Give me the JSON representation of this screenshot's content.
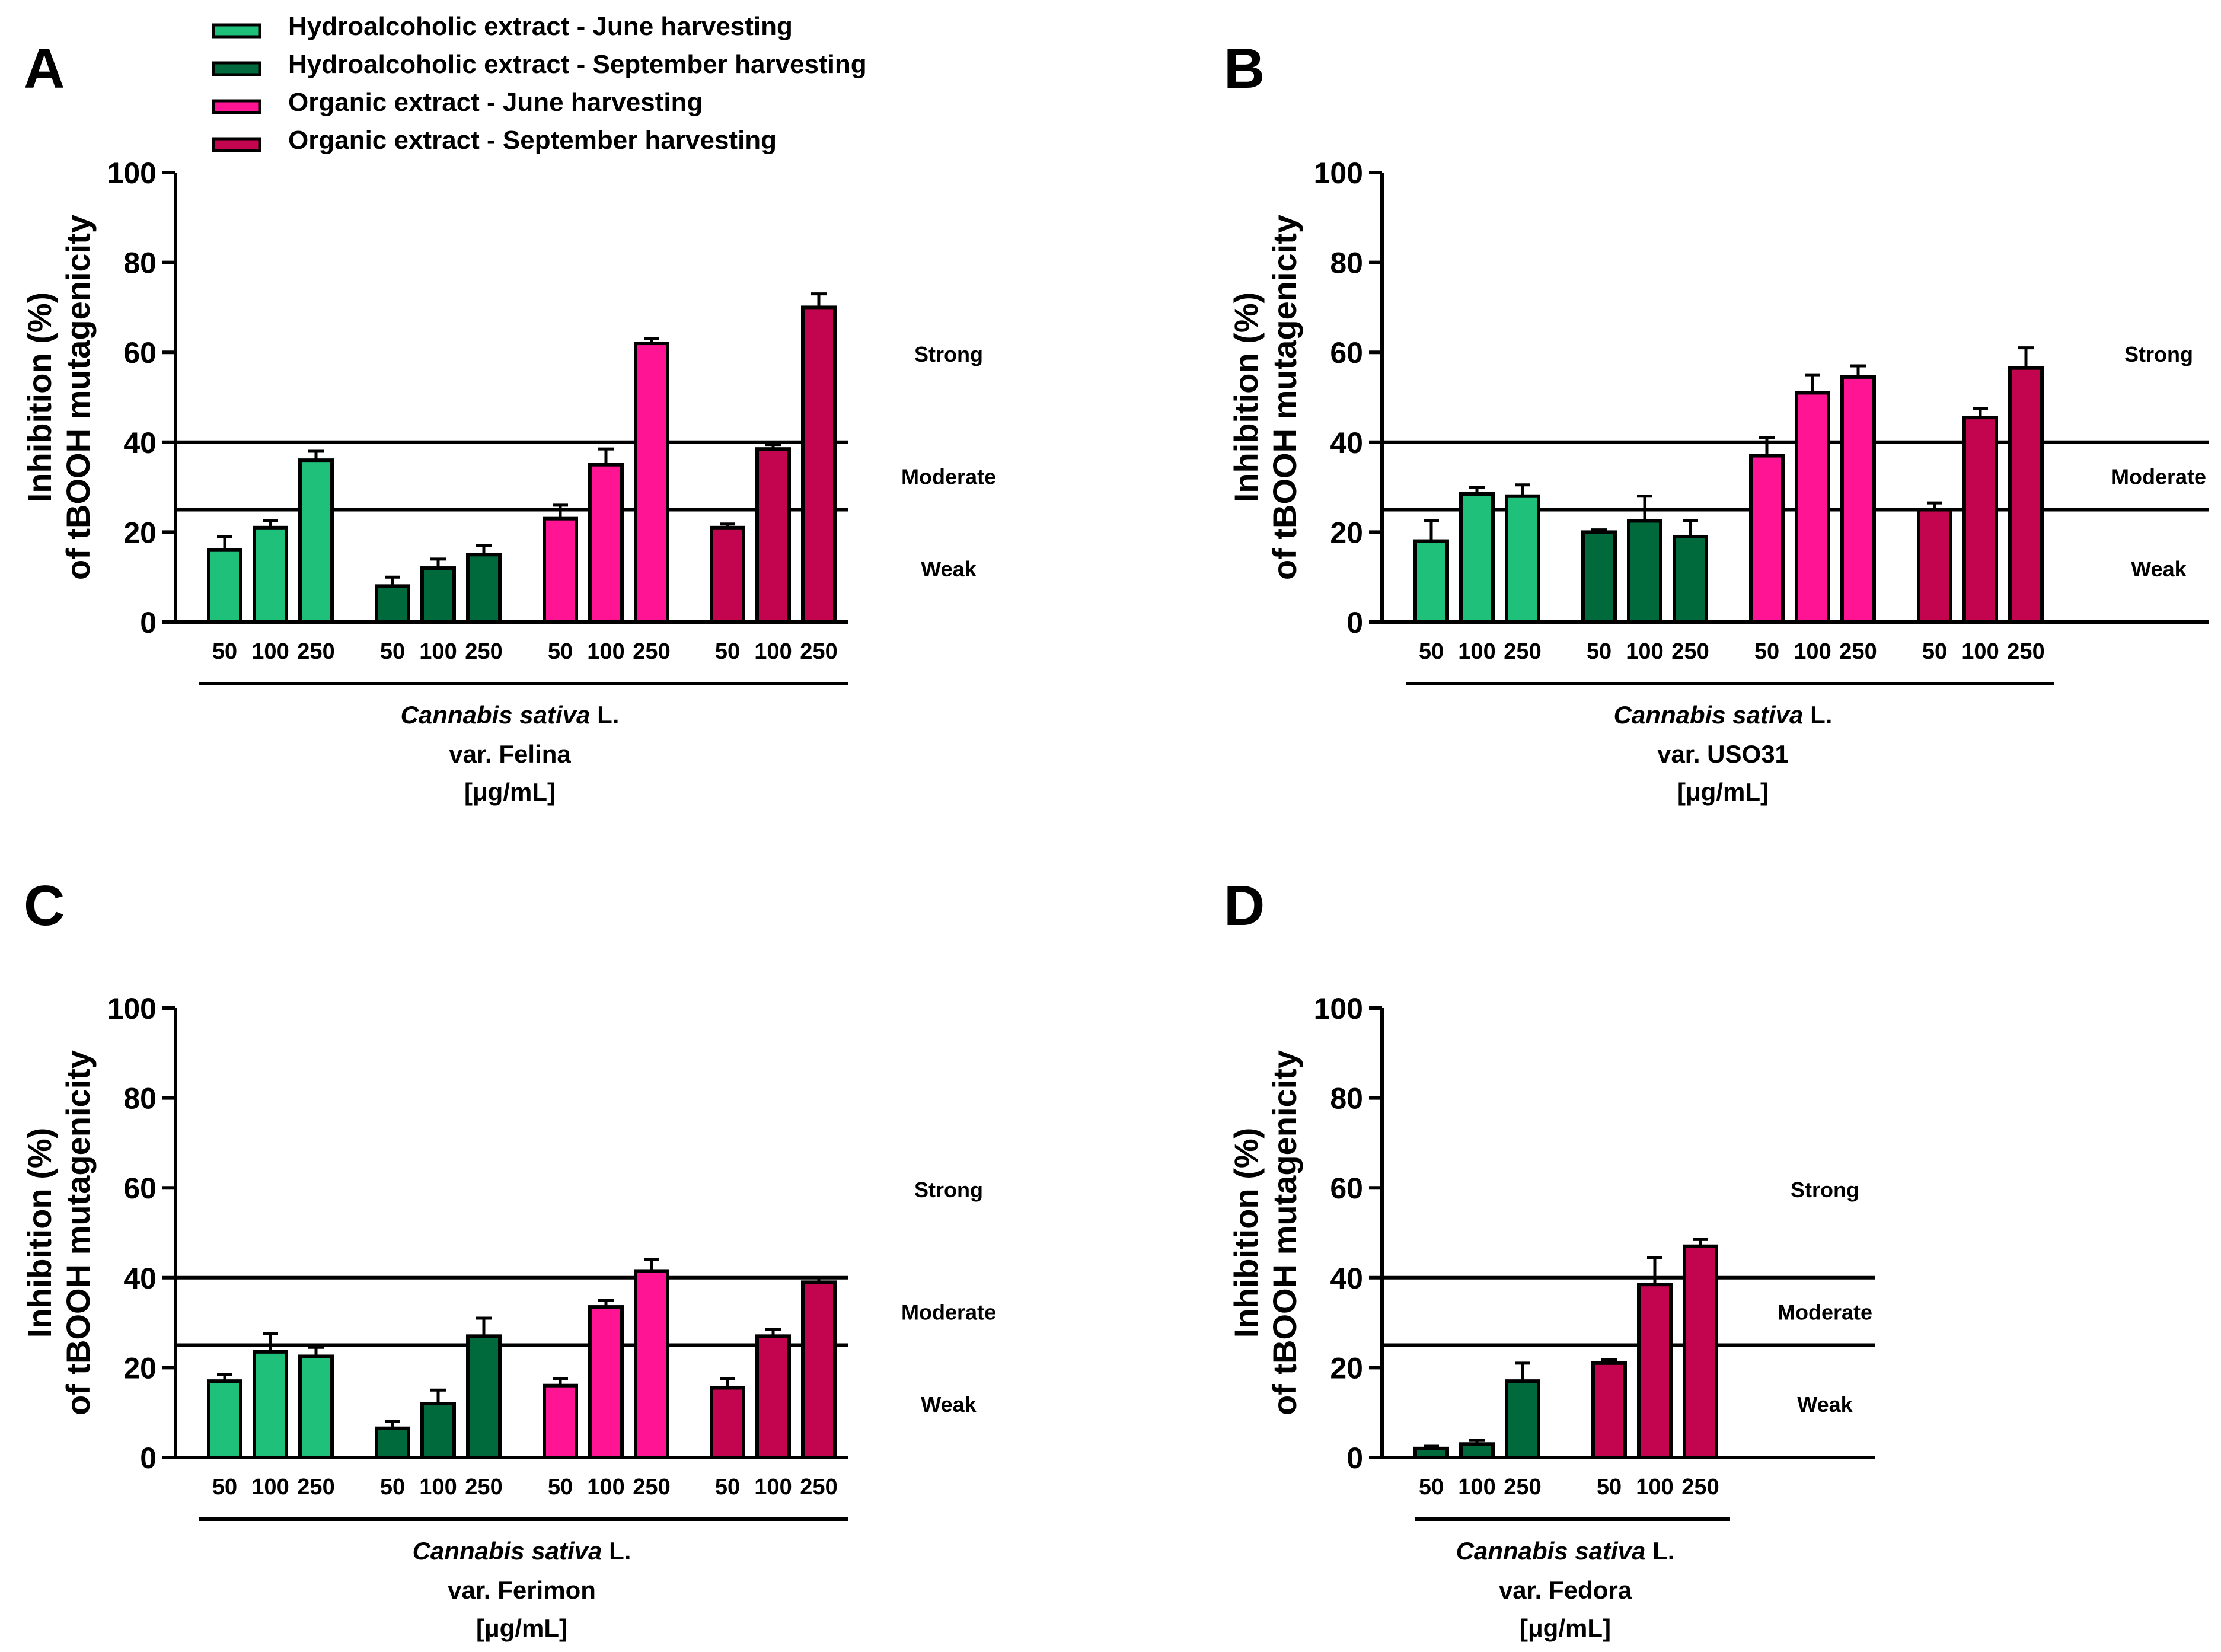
{
  "legend": [
    {
      "label": "Hydroalcoholic extract - June harvesting",
      "color": "#1fc07a"
    },
    {
      "label": "Hydroalcoholic extract - September harvesting",
      "color": "#006a3d"
    },
    {
      "label": "Organic extract - June harvesting",
      "color": "#ff1493"
    },
    {
      "label": "Organic extract - September harvesting",
      "color": "#c2054e"
    }
  ],
  "chart_data": [
    {
      "panel": "A",
      "type": "bar",
      "ylabel_line1": "Inhibition (%)",
      "ylabel_line2": "of tBOOH mutagenicity",
      "ylim": [
        0,
        100
      ],
      "yticks": [
        0,
        20,
        40,
        60,
        80,
        100
      ],
      "thresholds": [
        25,
        40
      ],
      "zones": [
        "Strong",
        "Moderate",
        "Weak"
      ],
      "caption_species": "Cannabis sativa",
      "caption_author": " L.",
      "caption_var": "var. Felina",
      "caption_unit": "[μg/mL]",
      "categories": [
        "50",
        "100",
        "250"
      ],
      "series": [
        {
          "name": "Hydroalcoholic extract - June harvesting",
          "series_index": 0,
          "values": [
            16,
            21,
            36
          ],
          "errors": [
            3,
            1.5,
            2
          ]
        },
        {
          "name": "Hydroalcoholic extract - September harvesting",
          "series_index": 1,
          "values": [
            8,
            12,
            15
          ],
          "errors": [
            2,
            2,
            2
          ]
        },
        {
          "name": "Organic extract - June harvesting",
          "series_index": 2,
          "values": [
            23,
            35,
            62
          ],
          "errors": [
            3,
            3.5,
            1
          ]
        },
        {
          "name": "Organic extract - September harvesting",
          "series_index": 3,
          "values": [
            21,
            38.5,
            70
          ],
          "errors": [
            0.8,
            1,
            3
          ]
        }
      ]
    },
    {
      "panel": "B",
      "type": "bar",
      "ylabel_line1": "Inhibition (%)",
      "ylabel_line2": "of tBOOH mutagenicity",
      "ylim": [
        0,
        100
      ],
      "yticks": [
        0,
        20,
        40,
        60,
        80,
        100
      ],
      "thresholds": [
        25,
        40
      ],
      "zones": [
        "Strong",
        "Moderate",
        "Weak"
      ],
      "caption_species": "Cannabis sativa",
      "caption_author": " L.",
      "caption_var": "var. USO31",
      "caption_unit": "[μg/mL]",
      "categories": [
        "50",
        "100",
        "250"
      ],
      "series": [
        {
          "name": "Hydroalcoholic extract - June harvesting",
          "series_index": 0,
          "values": [
            18,
            28.5,
            28
          ],
          "errors": [
            4.5,
            1.5,
            2.5
          ]
        },
        {
          "name": "Hydroalcoholic extract - September harvesting",
          "series_index": 1,
          "values": [
            20,
            22.5,
            19
          ],
          "errors": [
            0.5,
            5.5,
            3.5
          ]
        },
        {
          "name": "Organic extract - June harvesting",
          "series_index": 2,
          "values": [
            37,
            51,
            54.5
          ],
          "errors": [
            4,
            4,
            2.5
          ]
        },
        {
          "name": "Organic extract - September harvesting",
          "series_index": 3,
          "values": [
            25,
            45.5,
            56.5
          ],
          "errors": [
            1.5,
            2,
            4.5
          ]
        }
      ]
    },
    {
      "panel": "C",
      "type": "bar",
      "ylabel_line1": "Inhibition (%)",
      "ylabel_line2": "of tBOOH mutagenicity",
      "ylim": [
        0,
        100
      ],
      "yticks": [
        0,
        20,
        40,
        60,
        80,
        100
      ],
      "thresholds": [
        25,
        40
      ],
      "zones": [
        "Strong",
        "Moderate",
        "Weak"
      ],
      "caption_species": "Cannabis sativa",
      "caption_author": " L.",
      "caption_var": "var. Ferimon",
      "caption_unit": "[μg/mL]",
      "categories": [
        "50",
        "100",
        "250"
      ],
      "series": [
        {
          "name": "Hydroalcoholic extract - June harvesting",
          "series_index": 0,
          "values": [
            17,
            23.5,
            22.5
          ],
          "errors": [
            1.5,
            4,
            2
          ]
        },
        {
          "name": "Hydroalcoholic extract - September harvesting",
          "series_index": 1,
          "values": [
            6.5,
            12,
            27
          ],
          "errors": [
            1.5,
            3,
            4
          ]
        },
        {
          "name": "Organic extract - June harvesting",
          "series_index": 2,
          "values": [
            16,
            33.5,
            41.5
          ],
          "errors": [
            1.5,
            1.5,
            2.5
          ]
        },
        {
          "name": "Organic extract - September harvesting",
          "series_index": 3,
          "values": [
            15.5,
            27,
            39
          ],
          "errors": [
            2,
            1.5,
            1
          ]
        }
      ]
    },
    {
      "panel": "D",
      "type": "bar",
      "ylabel_line1": "Inhibition (%)",
      "ylabel_line2": "of tBOOH mutagenicity",
      "ylim": [
        0,
        100
      ],
      "yticks": [
        0,
        20,
        40,
        60,
        80,
        100
      ],
      "thresholds": [
        25,
        40
      ],
      "zones": [
        "Strong",
        "Moderate",
        "Weak"
      ],
      "caption_species": "Cannabis sativa",
      "caption_author": " L.",
      "caption_var": "var. Fedora",
      "caption_unit": "[μg/mL]",
      "categories": [
        "50",
        "100",
        "250"
      ],
      "series": [
        {
          "name": "Hydroalcoholic extract - September harvesting",
          "series_index": 1,
          "values": [
            2,
            3,
            17
          ],
          "errors": [
            0.5,
            0.8,
            4
          ]
        },
        {
          "name": "Organic extract - September harvesting",
          "series_index": 3,
          "values": [
            21,
            38.5,
            47
          ],
          "errors": [
            0.8,
            6,
            1.5
          ]
        }
      ]
    }
  ]
}
